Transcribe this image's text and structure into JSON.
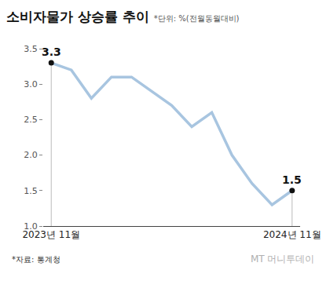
{
  "chart_data": {
    "type": "line",
    "title": "소비자물가 상승률 추이",
    "subtitle": "*단위: %(전월동월대비)",
    "source": "*자료: 통계청",
    "watermark": "MT 머니투데이",
    "categories": [
      "2023년 11월",
      null,
      null,
      null,
      null,
      null,
      null,
      null,
      null,
      null,
      null,
      null,
      "2024년 11월"
    ],
    "values": [
      3.3,
      3.2,
      2.8,
      3.1,
      3.1,
      2.9,
      2.7,
      2.4,
      2.6,
      2.0,
      1.6,
      1.3,
      1.5
    ],
    "color": "#a8c5e0",
    "ylim": [
      1.0,
      3.5
    ],
    "yticks": [
      {
        "value": 1,
        "label": "1.0"
      },
      1.5,
      {
        "value": 2,
        "label": "2.0"
      },
      2.5,
      {
        "value": 3,
        "label": "3.0"
      },
      3.5
    ],
    "grid": false,
    "annotations": [
      {
        "index": 0
      },
      {
        "index": 12
      }
    ]
  }
}
